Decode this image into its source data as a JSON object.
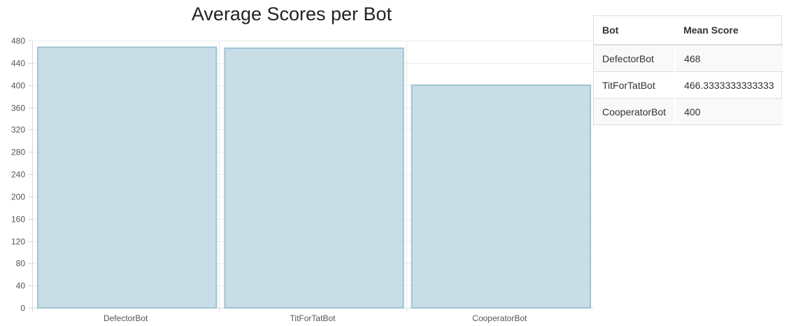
{
  "chart_data": {
    "type": "bar",
    "title": "Average Scores per Bot",
    "xlabel": "",
    "ylabel": "",
    "categories": [
      "DefectorBot",
      "TitForTatBot",
      "CooperatorBot"
    ],
    "values": [
      468,
      466.3333333333333,
      400
    ],
    "ylim": [
      0,
      480
    ],
    "yticks": [
      0,
      40,
      80,
      120,
      160,
      200,
      240,
      280,
      320,
      360,
      400,
      440,
      480
    ],
    "grid": true,
    "legend": "none",
    "bar_fill": "#c9dde7",
    "bar_stroke": "#9fc4d3"
  },
  "table": {
    "headers": {
      "bot": "Bot",
      "mean_score": "Mean Score"
    },
    "rows": [
      {
        "bot": "DefectorBot",
        "mean_score": "468"
      },
      {
        "bot": "TitForTatBot",
        "mean_score": "466.3333333333333"
      },
      {
        "bot": "CooperatorBot",
        "mean_score": "400"
      }
    ]
  }
}
